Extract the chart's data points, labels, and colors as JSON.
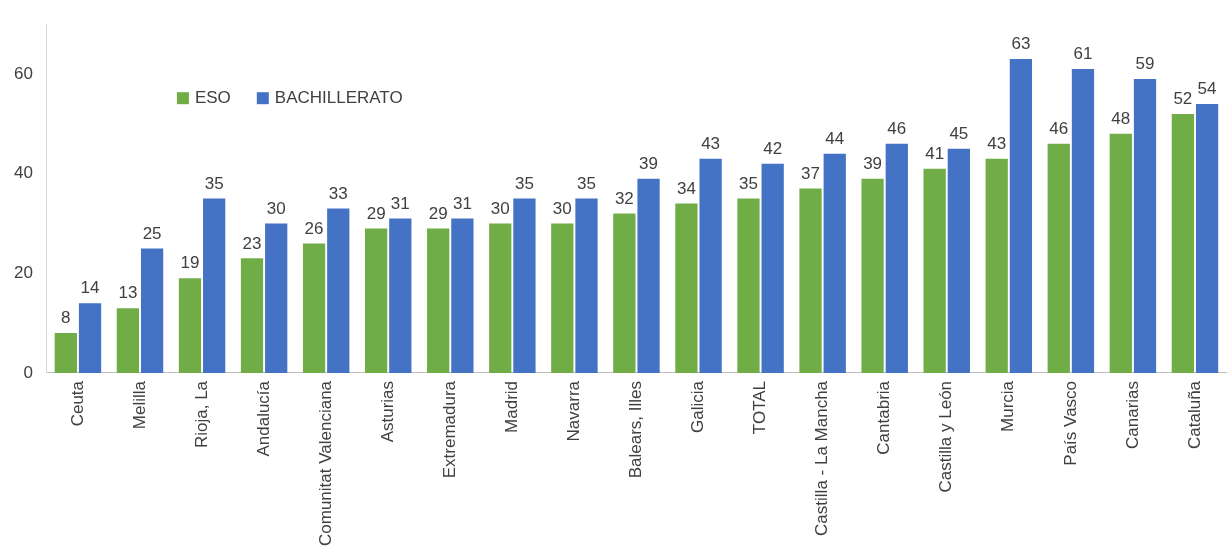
{
  "chart_data": {
    "type": "bar",
    "categories": [
      "Ceuta",
      "Melilla",
      "Rioja, La",
      "Andalucía",
      "Comunitat Valenciana",
      "Asturias",
      "Extremadura",
      "Madrid",
      "Navarra",
      "Balears, Illes",
      "Galicia",
      "TOTAL",
      "Castilla - La Mancha",
      "Cantabria",
      "Castilla y León",
      "Murcia",
      "País Vasco",
      "Canarias",
      "Cataluña"
    ],
    "series": [
      {
        "name": "ESO",
        "color": "#70ad47",
        "values": [
          8,
          13,
          19,
          23,
          26,
          29,
          29,
          30,
          30,
          32,
          34,
          35,
          37,
          39,
          41,
          43,
          46,
          48,
          52
        ]
      },
      {
        "name": "BACHILLERATO",
        "color": "#4472c4",
        "values": [
          14,
          25,
          35,
          30,
          33,
          31,
          31,
          35,
          35,
          39,
          43,
          42,
          44,
          46,
          45,
          63,
          61,
          59,
          54
        ]
      }
    ],
    "ylim": [
      0,
      70
    ],
    "yticks": [
      0,
      20,
      40,
      60
    ],
    "grid": false,
    "legend": "top left",
    "data_labels": true
  }
}
